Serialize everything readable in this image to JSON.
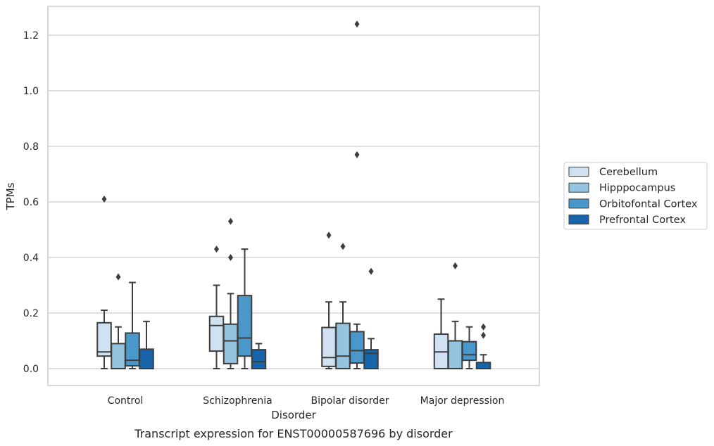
{
  "caption": "Transcript expression for ENST00000587696 by disorder",
  "chart_data": {
    "type": "box",
    "xlabel": "Disorder",
    "ylabel": "TPMs",
    "ylim": [
      -0.06,
      1.31
    ],
    "yticks": [
      "0.0",
      "0.2",
      "0.4",
      "0.6",
      "0.8",
      "1.0",
      "1.2"
    ],
    "grid": true,
    "legend_position": "right",
    "categories": [
      "Control",
      "Schizophrenia",
      "Bipolar disorder",
      "Major depression"
    ],
    "series": [
      {
        "name": "Cerebellum",
        "color": "#d0e1f2",
        "boxes": [
          {
            "whislo": 0.0,
            "q1": 0.045,
            "med": 0.06,
            "q3": 0.165,
            "whishi": 0.21,
            "fliers": [
              0.61
            ]
          },
          {
            "whislo": 0.0,
            "q1": 0.063,
            "med": 0.155,
            "q3": 0.188,
            "whishi": 0.3,
            "fliers": [
              0.43
            ]
          },
          {
            "whislo": 0.0,
            "q1": 0.008,
            "med": 0.04,
            "q3": 0.148,
            "whishi": 0.24,
            "fliers": [
              0.48
            ]
          },
          {
            "whislo": 0.0,
            "q1": 0.0,
            "med": 0.06,
            "q3": 0.124,
            "whishi": 0.25,
            "fliers": []
          }
        ]
      },
      {
        "name": "Hipppocampus",
        "color": "#94c4df",
        "boxes": [
          {
            "whislo": 0.0,
            "q1": 0.0,
            "med": 0.0,
            "q3": 0.09,
            "whishi": 0.15,
            "fliers": [
              0.33
            ]
          },
          {
            "whislo": 0.0,
            "q1": 0.018,
            "med": 0.1,
            "q3": 0.16,
            "whishi": 0.27,
            "fliers": [
              0.4,
              0.53
            ]
          },
          {
            "whislo": 0.0,
            "q1": 0.0,
            "med": 0.045,
            "q3": 0.163,
            "whishi": 0.24,
            "fliers": [
              0.44
            ]
          },
          {
            "whislo": 0.0,
            "q1": 0.0,
            "med": 0.0,
            "q3": 0.1,
            "whishi": 0.17,
            "fliers": [
              0.37
            ]
          }
        ]
      },
      {
        "name": "Orbitofontal Cortex",
        "color": "#4a98c9",
        "boxes": [
          {
            "whislo": 0.0,
            "q1": 0.01,
            "med": 0.03,
            "q3": 0.128,
            "whishi": 0.31,
            "fliers": []
          },
          {
            "whislo": 0.0,
            "q1": 0.045,
            "med": 0.11,
            "q3": 0.263,
            "whishi": 0.43,
            "fliers": []
          },
          {
            "whislo": 0.0,
            "q1": 0.02,
            "med": 0.065,
            "q3": 0.133,
            "whishi": 0.16,
            "fliers": [
              0.77,
              1.24
            ]
          },
          {
            "whislo": 0.0,
            "q1": 0.03,
            "med": 0.05,
            "q3": 0.097,
            "whishi": 0.15,
            "fliers": []
          }
        ]
      },
      {
        "name": "Prefrontal Cortex",
        "color": "#1764ab",
        "boxes": [
          {
            "whislo": 0.0,
            "q1": 0.0,
            "med": 0.0,
            "q3": 0.07,
            "whishi": 0.17,
            "fliers": []
          },
          {
            "whislo": 0.0,
            "q1": 0.0,
            "med": 0.025,
            "q3": 0.068,
            "whishi": 0.09,
            "fliers": []
          },
          {
            "whislo": 0.0,
            "q1": 0.0,
            "med": 0.055,
            "q3": 0.068,
            "whishi": 0.108,
            "fliers": [
              0.35
            ]
          },
          {
            "whislo": 0.0,
            "q1": 0.0,
            "med": 0.0,
            "q3": 0.022,
            "whishi": 0.05,
            "fliers": [
              0.12,
              0.15
            ]
          }
        ]
      }
    ]
  }
}
